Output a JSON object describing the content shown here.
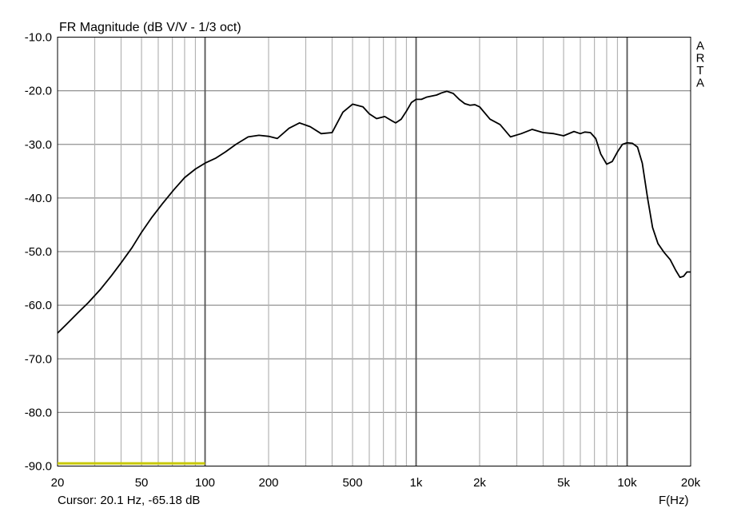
{
  "chart_data": {
    "type": "line",
    "title": "FR Magnitude (dB V/V - 1/3 oct)",
    "xlabel": "F(Hz)",
    "ylabel": "",
    "x_scale": "log",
    "xlim": [
      20,
      20000
    ],
    "ylim": [
      -90,
      -10
    ],
    "grid": true,
    "y_ticks": [
      -10,
      -20,
      -30,
      -40,
      -50,
      -60,
      -70,
      -80,
      -90
    ],
    "y_tick_labels": [
      "-10.0",
      "-20.0",
      "-30.0",
      "-40.0",
      "-50.0",
      "-60.0",
      "-70.0",
      "-80.0",
      "-90.0"
    ],
    "x_ticks": [
      20,
      50,
      100,
      200,
      500,
      1000,
      2000,
      5000,
      10000,
      20000
    ],
    "x_tick_labels": [
      "20",
      "50",
      "100",
      "200",
      "500",
      "1k",
      "2k",
      "5k",
      "10k",
      "20k"
    ],
    "side_label": "A R T A",
    "highlight": {
      "x_range": [
        20,
        100
      ],
      "y": -89.5,
      "color": "#c8c800"
    },
    "series": [
      {
        "color": "#000000",
        "x": [
          20,
          22,
          25,
          28,
          32,
          36,
          40,
          45,
          50,
          56,
          63,
          71,
          80,
          90,
          100,
          112,
          125,
          140,
          160,
          180,
          200,
          220,
          250,
          280,
          315,
          355,
          400,
          450,
          500,
          560,
          600,
          650,
          710,
          760,
          800,
          850,
          900,
          950,
          1000,
          1060,
          1120,
          1180,
          1250,
          1320,
          1400,
          1500,
          1600,
          1700,
          1800,
          1900,
          2000,
          2240,
          2500,
          2800,
          3150,
          3550,
          4000,
          4500,
          5000,
          5600,
          6000,
          6300,
          6700,
          7100,
          7500,
          8000,
          8500,
          9000,
          9500,
          10000,
          10600,
          11200,
          11800,
          12500,
          13200,
          14000,
          15000,
          16000,
          17000,
          17800,
          18500,
          19200,
          20000
        ],
        "values": [
          -65.2,
          -63.6,
          -61.4,
          -59.5,
          -57.0,
          -54.5,
          -52.1,
          -49.3,
          -46.4,
          -43.6,
          -41.0,
          -38.5,
          -36.2,
          -34.6,
          -33.5,
          -32.6,
          -31.4,
          -30.0,
          -28.6,
          -28.3,
          -28.5,
          -28.9,
          -27.0,
          -26.0,
          -26.7,
          -28.0,
          -27.8,
          -24.0,
          -22.5,
          -23.0,
          -24.3,
          -25.2,
          -24.8,
          -25.5,
          -26.0,
          -25.3,
          -23.8,
          -22.2,
          -21.6,
          -21.6,
          -21.2,
          -21.0,
          -20.8,
          -20.4,
          -20.1,
          -20.5,
          -21.6,
          -22.4,
          -22.7,
          -22.6,
          -23.0,
          -25.3,
          -26.3,
          -28.6,
          -28.0,
          -27.2,
          -27.8,
          -28.0,
          -28.4,
          -27.6,
          -28.0,
          -27.7,
          -27.8,
          -28.9,
          -31.8,
          -33.7,
          -33.2,
          -31.4,
          -30.0,
          -29.7,
          -29.8,
          -30.5,
          -33.5,
          -40.0,
          -45.5,
          -48.5,
          -50.2,
          -51.5,
          -53.5,
          -54.8,
          -54.6,
          -53.8,
          -53.8
        ]
      }
    ]
  },
  "cursor_readout": "Cursor: 20.1 Hz, -65.18 dB"
}
